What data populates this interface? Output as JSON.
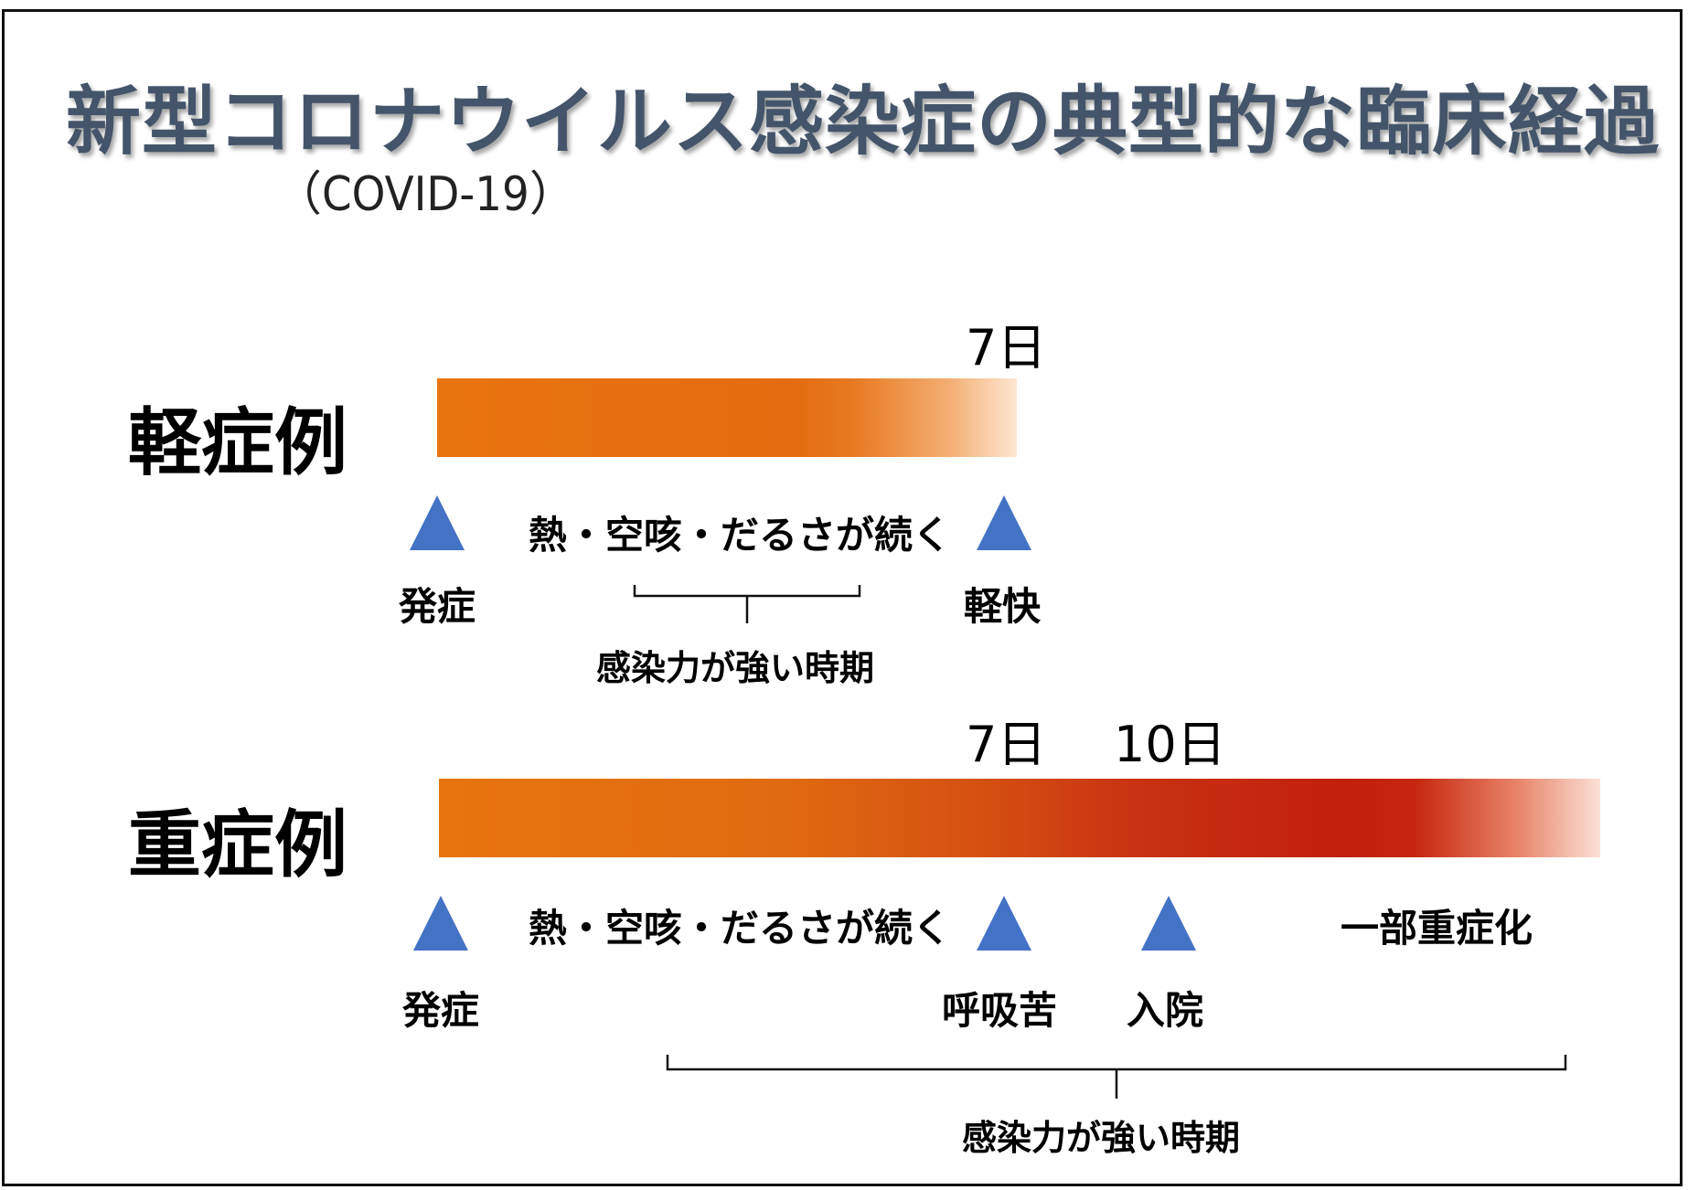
{
  "title": "新型コロナウイルス感染症の典型的な臨床経過",
  "subtitle": "（COVID-19）",
  "colors": {
    "title": "#44546a",
    "marker": "#4472c4",
    "bar_start": "#e8740f",
    "bar_severe_peak": "#c21f0d"
  },
  "mild": {
    "label": "軽症例",
    "day_label": "7日",
    "onset": "発症",
    "symptoms": "熱・空咳・だるさが続く",
    "recovery": "軽快",
    "infectious_period": "感染力が強い時期"
  },
  "severe": {
    "label": "重症例",
    "day7_label": "7日",
    "day10_label": "10日",
    "onset": "発症",
    "symptoms": "熱・空咳・だるさが続く",
    "dyspnea": "呼吸苦",
    "hospitalization": "入院",
    "aggravation": "一部重症化",
    "infectious_period": "感染力が強い時期"
  }
}
